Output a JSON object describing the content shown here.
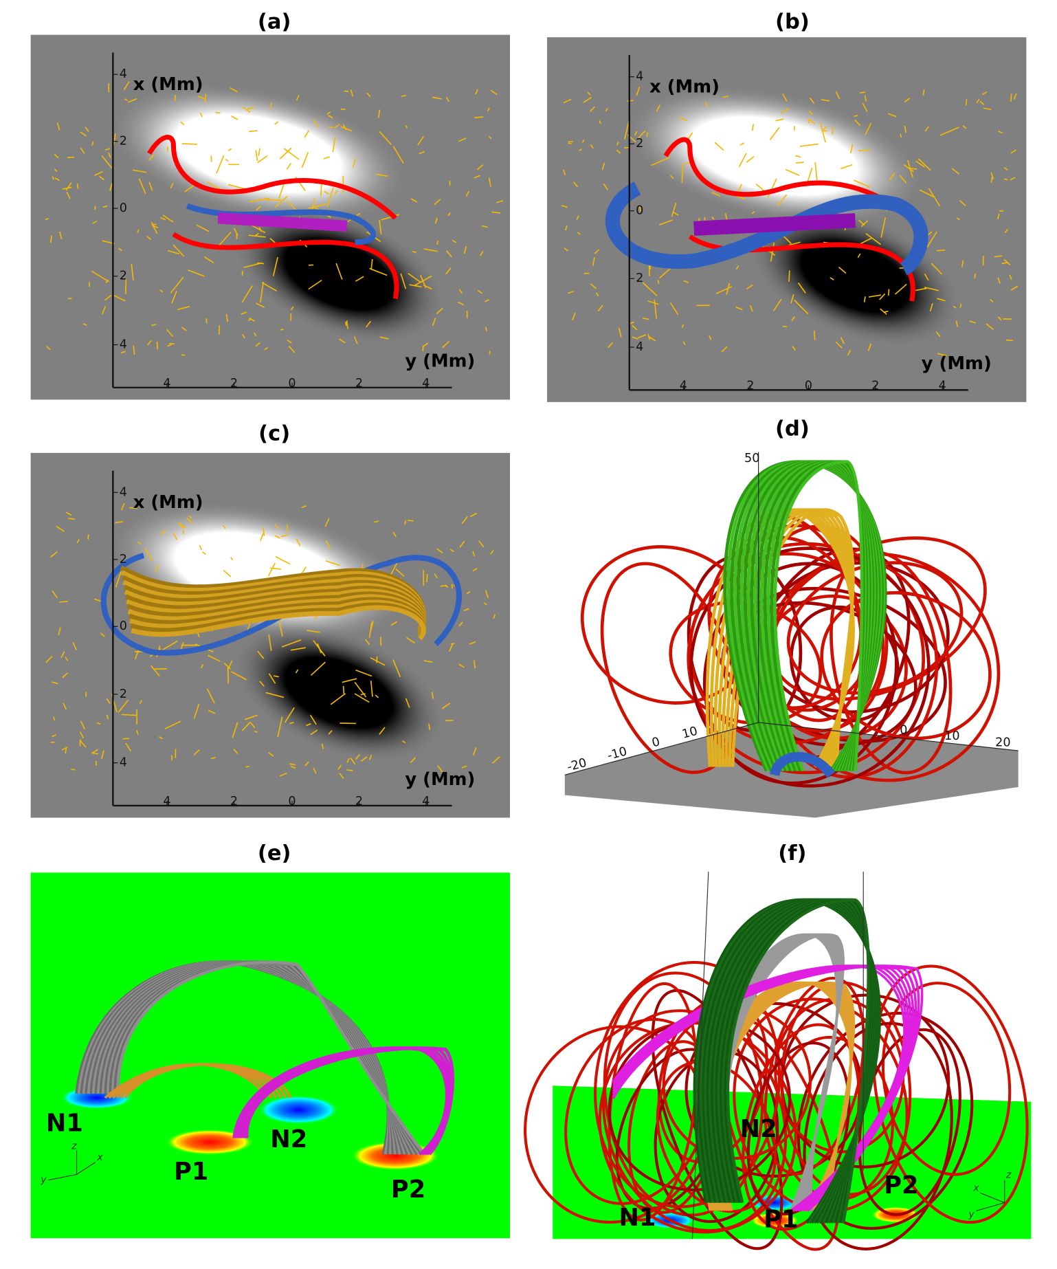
{
  "panels": [
    {
      "label": "(a)",
      "x_axis_label": "x (Mm)",
      "y_axis_label": "y (Mm)",
      "x_ticks": [
        "4",
        "2",
        "0",
        "2",
        "4"
      ],
      "y_ticks": [
        "4",
        "2",
        "0",
        "2",
        "4"
      ]
    },
    {
      "label": "(b)",
      "x_axis_label": "x (Mm)",
      "y_axis_label": "y (Mm)",
      "x_ticks": [
        "4",
        "2",
        "0",
        "2",
        "4"
      ],
      "y_ticks": [
        "4",
        "2",
        "0",
        "2",
        "4"
      ]
    },
    {
      "label": "(c)",
      "x_axis_label": "x (Mm)",
      "y_axis_label": "y (Mm)",
      "x_ticks": [
        "4",
        "2",
        "0",
        "2",
        "4"
      ],
      "y_ticks": [
        "4",
        "2",
        "0",
        "2",
        "4"
      ]
    },
    {
      "label": "(d)",
      "z_tick": "50",
      "left_ticks": [
        "-20",
        "-10",
        "0",
        "10"
      ],
      "right_ticks": [
        "0",
        "10",
        "20"
      ]
    },
    {
      "label": "(e)",
      "annotations": [
        "N1",
        "P1",
        "N2",
        "P2"
      ],
      "axes": [
        "z",
        "y",
        "x"
      ]
    },
    {
      "label": "(f)",
      "annotations": [
        "N1",
        "N2",
        "P1",
        "P2"
      ],
      "axes": [
        "z",
        "x",
        "y"
      ]
    }
  ]
}
